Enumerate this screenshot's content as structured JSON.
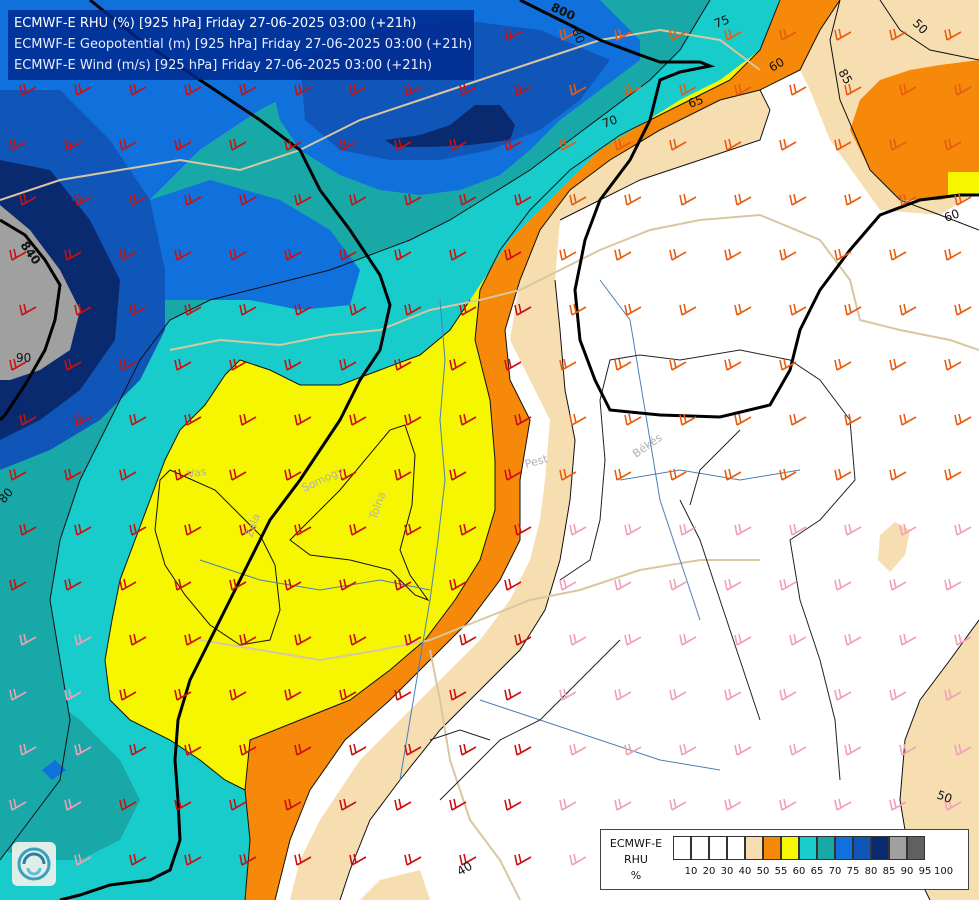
{
  "header": {
    "line1": "ECMWF-E RHU (%) [925 hPa] Friday 27-06-2025 03:00 (+21h)",
    "line2": "ECMWF-E Geopotential (m) [925 hPa] Friday 27-06-2025 03:00 (+21h)",
    "line3": "ECMWF-E Wind (m/s) [925 hPa] Friday 27-06-2025 03:00 (+21h)"
  },
  "legend": {
    "title_line1": "ECMWF-E",
    "title_line2": "RHU",
    "title_line3": "%",
    "ticks": [
      "10",
      "20",
      "30",
      "40",
      "50",
      "55",
      "60",
      "65",
      "70",
      "75",
      "80",
      "85",
      "90",
      "95",
      "100"
    ],
    "colors": [
      "#ffffff",
      "#ffffff",
      "#ffffff",
      "#ffffff",
      "#f6deb0",
      "#f6880a",
      "#f5f600",
      "#18cccc",
      "#19a8a8",
      "#1070dc",
      "#1055b8",
      "#0a2a70",
      "#a0a0a0",
      "#606060"
    ]
  },
  "contour_labels": {
    "rhu": [
      "50",
      "60",
      "65",
      "70",
      "75",
      "80",
      "50",
      "40",
      "85",
      "90",
      "80",
      "60",
      "50"
    ],
    "geopotential": [
      "800",
      "840"
    ]
  },
  "place_labels": [
    "Vas",
    "Somogy",
    "Tolna",
    "Zala",
    "Pest",
    "Békés"
  ],
  "colors": {
    "band_white": "#ffffff",
    "band_55": "#f6deb0",
    "band_60": "#f6880a",
    "band_65": "#f5f600",
    "band_70": "#18cccc",
    "band_75": "#19a8a8",
    "band_80": "#1070dc",
    "band_85": "#1055b8",
    "band_90": "#0a2a70",
    "band_95": "#a0a0a0",
    "geopotential_line": "#000000",
    "barb_red": "#cc1010",
    "barb_orange": "#e85c10",
    "barb_pink": "#f0a0b8",
    "border_line": "#d8c7a0",
    "river_line": "#4a7fb8"
  },
  "logo": {
    "icon": "organization-logo-icon"
  }
}
